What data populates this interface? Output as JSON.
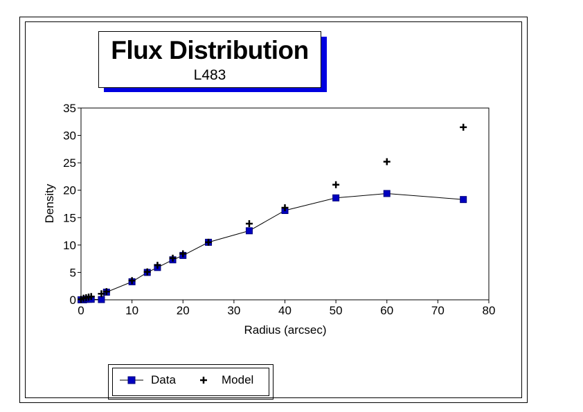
{
  "chart_data": {
    "type": "line",
    "title": "Flux Distribution",
    "subtitle": "L483",
    "xlabel": "Radius (arcsec)",
    "ylabel": "Density",
    "xlim": [
      0,
      80
    ],
    "ylim": [
      0,
      35
    ],
    "xticks": [
      0,
      10,
      20,
      30,
      40,
      50,
      60,
      70,
      80
    ],
    "yticks": [
      0,
      5,
      10,
      15,
      20,
      25,
      30,
      35
    ],
    "grid": false,
    "legend_position": "bottom-left",
    "series": [
      {
        "name": "Data",
        "marker": "square",
        "line": true,
        "color": "#0000c0",
        "x": [
          0,
          0.5,
          1,
          1.5,
          2,
          4,
          5,
          10,
          13,
          15,
          18,
          20,
          25,
          33,
          40,
          50,
          60,
          75
        ],
        "y": [
          0,
          0,
          0.1,
          0.1,
          0.1,
          0.05,
          1.4,
          3.3,
          5.0,
          5.9,
          7.3,
          8.1,
          10.5,
          12.6,
          16.3,
          18.6,
          19.4,
          18.3
        ]
      },
      {
        "name": "Model",
        "marker": "plus",
        "line": false,
        "color": "#000000",
        "x": [
          0,
          0.5,
          1,
          1.5,
          2,
          4,
          5,
          10,
          13,
          15,
          18,
          20,
          25,
          33,
          40,
          50,
          60,
          75
        ],
        "y": [
          0.1,
          0.3,
          0.4,
          0.5,
          0.6,
          1.1,
          1.5,
          3.5,
          5.1,
          6.3,
          7.6,
          8.4,
          10.5,
          13.9,
          16.8,
          21.0,
          25.2,
          31.5
        ]
      }
    ]
  }
}
